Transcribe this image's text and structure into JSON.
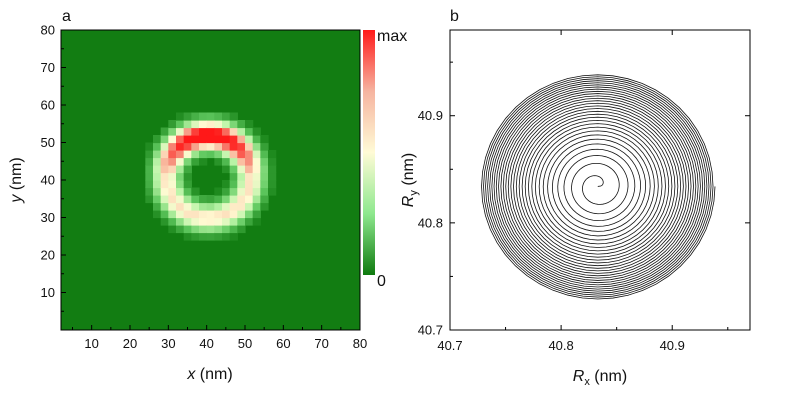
{
  "panels": {
    "a": "a",
    "b": "b"
  },
  "chart_data": [
    {
      "type": "heatmap",
      "panel": "a",
      "xlabel": {
        "var": "x",
        "unit": " (nm)"
      },
      "ylabel": {
        "var": "y",
        "unit": " (nm)"
      },
      "xlim": [
        2,
        80
      ],
      "ylim": [
        0,
        80
      ],
      "xticks": [
        10,
        20,
        30,
        40,
        50,
        60,
        70,
        80
      ],
      "yticks": [
        10,
        20,
        30,
        40,
        50,
        60,
        70,
        80
      ],
      "grid": false,
      "colorbar": {
        "min_label": "0",
        "max_label": "max",
        "colors": [
          "#0e7a0e",
          "#8ee88e",
          "#fffbd6",
          "#f6b4a0",
          "#ff1a1a"
        ]
      },
      "background_color": "#127d12",
      "grid_cells": 40,
      "feature": {
        "shape": "ring",
        "center": [
          40.5,
          41
        ],
        "outer_radius": 14,
        "inner_radius": 8,
        "max_intensity_region": "upper arc (y ≈ 50–56)"
      }
    },
    {
      "type": "line",
      "panel": "b",
      "description": "spiral trajectory",
      "xlabel": {
        "var": "R",
        "sub": "x",
        "unit": " (nm)"
      },
      "ylabel": {
        "var": "R",
        "sub": "y",
        "unit": " (nm)"
      },
      "xlim": [
        40.7,
        40.97
      ],
      "ylim": [
        40.7,
        40.98
      ],
      "xticks": [
        40.7,
        40.8,
        40.9
      ],
      "yticks": [
        40.7,
        40.8,
        40.9
      ],
      "grid": false,
      "series": [
        {
          "color": "#111111",
          "center": [
            40.833,
            40.834
          ],
          "r_outer": 0.1055,
          "turns": 30
        }
      ]
    }
  ]
}
